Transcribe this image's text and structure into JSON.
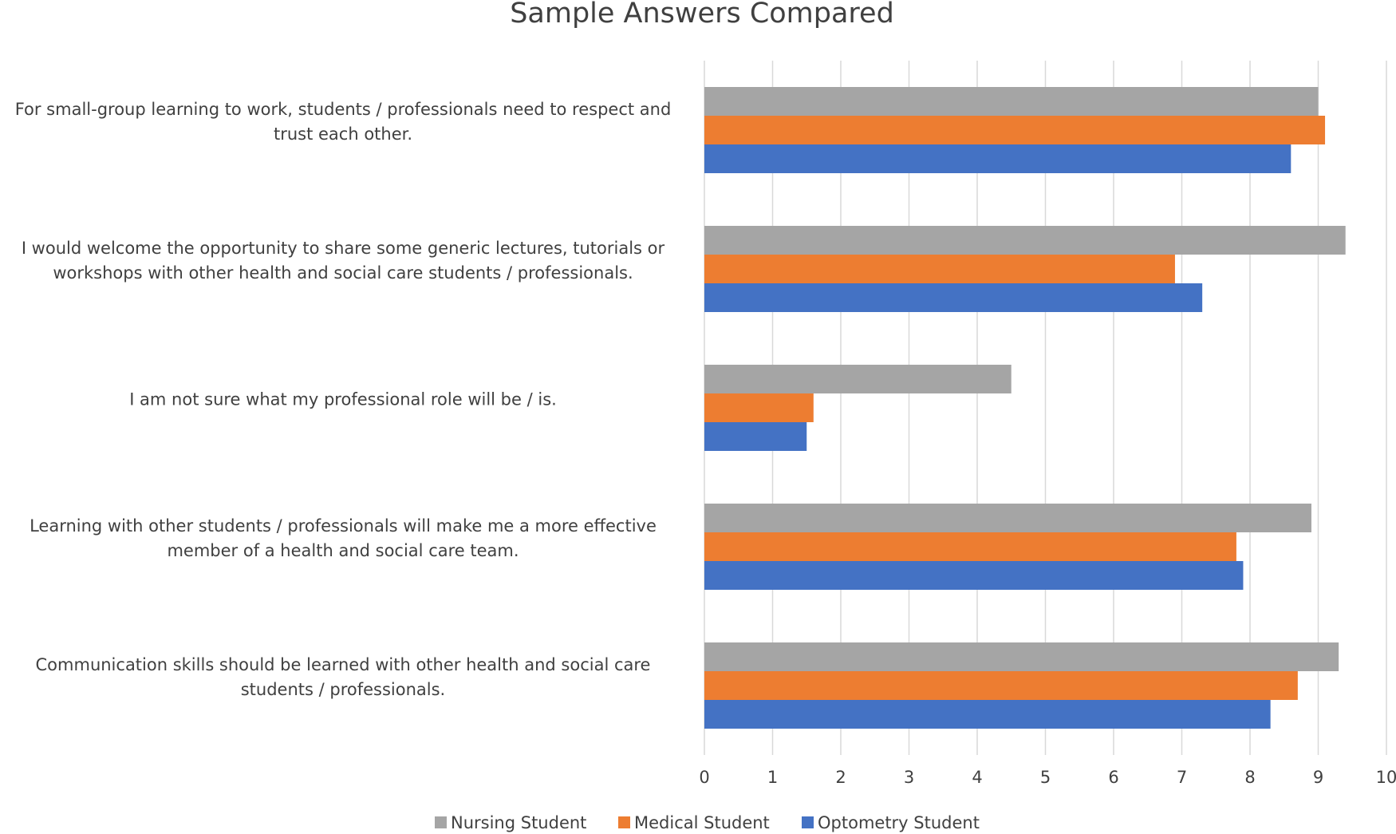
{
  "chart_data": {
    "type": "hbar",
    "title": "Sample Answers Compared",
    "categories": [
      "For small-group learning to work, students / professionals need to respect and trust each other.",
      "I would welcome the opportunity to share some generic lectures, tutorials or workshops with other health and social care students / professionals.",
      "I am not sure what my professional role will be / is.",
      "Learning with other students / professionals will make me a more effective member of a health and social care team.",
      "Communication skills should be learned with other health and social care students / professionals."
    ],
    "series": [
      {
        "name": "Nursing Student",
        "color": "#a5a5a5",
        "values": [
          9.0,
          9.4,
          4.5,
          8.9,
          9.3
        ]
      },
      {
        "name": "Medical Student",
        "color": "#ed7d31",
        "values": [
          9.1,
          6.9,
          1.6,
          7.8,
          8.7
        ]
      },
      {
        "name": "Optometry Student",
        "color": "#4472c4",
        "values": [
          8.6,
          7.3,
          1.5,
          7.9,
          8.3
        ]
      }
    ],
    "xlim": [
      0,
      10
    ],
    "xticks": [
      0,
      1,
      2,
      3,
      4,
      5,
      6,
      7,
      8,
      9,
      10
    ],
    "grid": true,
    "legend": "bottom"
  }
}
